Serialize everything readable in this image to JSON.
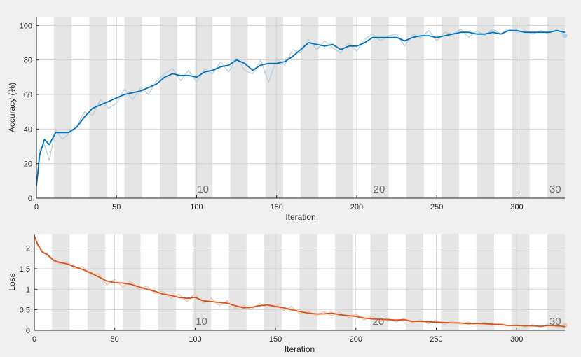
{
  "chart_data": [
    {
      "type": "line",
      "panel": "accuracy",
      "xlabel": "Iteration",
      "ylabel": "Accuracy (%)",
      "xlim": [
        0,
        330
      ],
      "ylim": [
        0,
        105
      ],
      "xticks": [
        0,
        50,
        100,
        150,
        200,
        250,
        300
      ],
      "yticks": [
        0,
        20,
        40,
        60,
        80,
        100
      ],
      "grid": true,
      "epoch_bands": {
        "iterations_per_epoch": 11,
        "epochs": 30
      },
      "epoch_labels": [
        {
          "text": "10",
          "x": 104
        },
        {
          "text": "20",
          "x": 214
        },
        {
          "text": "30",
          "x": 324
        }
      ],
      "colors": {
        "smoothed": "#0072bd",
        "raw": "#b4cfe2",
        "band": "#e5e5e5"
      },
      "series": [
        {
          "role": "smoothed",
          "x": [
            0,
            2,
            5,
            8,
            12,
            16,
            20,
            25,
            30,
            35,
            40,
            45,
            50,
            55,
            60,
            65,
            70,
            75,
            80,
            85,
            90,
            95,
            100,
            105,
            110,
            115,
            120,
            125,
            130,
            135,
            140,
            145,
            150,
            155,
            160,
            165,
            170,
            175,
            180,
            185,
            190,
            195,
            200,
            205,
            210,
            215,
            220,
            225,
            230,
            235,
            240,
            245,
            250,
            255,
            260,
            265,
            270,
            275,
            280,
            285,
            290,
            295,
            300,
            305,
            310,
            315,
            320,
            325,
            330
          ],
          "y": [
            7,
            25,
            34,
            31,
            38,
            38,
            38,
            41,
            47,
            52,
            54,
            56,
            58,
            60,
            61,
            62,
            64,
            66,
            70,
            72,
            71,
            71,
            70,
            73,
            74,
            76,
            77,
            80,
            78,
            74,
            77,
            78,
            78,
            79,
            82,
            86,
            90,
            89,
            88,
            89,
            86,
            88,
            88,
            90,
            93,
            93,
            93,
            93,
            91,
            93,
            94,
            94,
            93,
            94,
            95,
            96,
            96,
            95,
            95,
            96,
            95,
            97,
            97,
            96,
            96,
            96,
            96,
            97,
            96
          ]
        },
        {
          "role": "raw",
          "x": [
            0,
            2,
            5,
            8,
            12,
            16,
            20,
            25,
            30,
            35,
            40,
            45,
            50,
            55,
            60,
            65,
            70,
            75,
            80,
            85,
            90,
            95,
            100,
            105,
            110,
            115,
            120,
            125,
            130,
            135,
            140,
            145,
            150,
            155,
            160,
            165,
            170,
            175,
            180,
            185,
            190,
            195,
            200,
            205,
            210,
            215,
            220,
            225,
            230,
            235,
            240,
            245,
            250,
            255,
            260,
            265,
            270,
            275,
            280,
            285,
            290,
            295,
            300,
            305,
            310,
            315,
            320,
            325,
            330
          ],
          "y": [
            7,
            28,
            31,
            22,
            40,
            34,
            37,
            41,
            50,
            48,
            57,
            52,
            55,
            63,
            57,
            64,
            60,
            68,
            72,
            75,
            68,
            74,
            67,
            75,
            72,
            79,
            73,
            81,
            74,
            72,
            80,
            67,
            81,
            77,
            86,
            84,
            92,
            86,
            91,
            87,
            84,
            90,
            85,
            92,
            95,
            91,
            94,
            95,
            88,
            95,
            93,
            97,
            91,
            96,
            95,
            98,
            93,
            97,
            94,
            98,
            95,
            98,
            96,
            97,
            95,
            97,
            95,
            98,
            94
          ]
        }
      ]
    },
    {
      "type": "line",
      "panel": "loss",
      "xlabel": "Iteration",
      "ylabel": "Loss",
      "xlim": [
        0,
        330
      ],
      "ylim": [
        0,
        2.35
      ],
      "xticks": [
        0,
        50,
        100,
        150,
        200,
        250,
        300
      ],
      "yticks": [
        0,
        0.5,
        1,
        1.5,
        2
      ],
      "ytick_labels": [
        "0",
        "0.5",
        "1",
        "1.5",
        "2"
      ],
      "grid": true,
      "epoch_bands": {
        "iterations_per_epoch": 11,
        "epochs": 30
      },
      "epoch_labels": [
        {
          "text": "10",
          "x": 104
        },
        {
          "text": "20",
          "x": 214
        },
        {
          "text": "30",
          "x": 324
        }
      ],
      "colors": {
        "smoothed": "#d95319",
        "raw": "#efc4ad",
        "band": "#e5e5e5"
      },
      "series": [
        {
          "role": "smoothed",
          "x": [
            0,
            2,
            5,
            8,
            12,
            16,
            20,
            25,
            30,
            35,
            40,
            45,
            50,
            55,
            60,
            65,
            70,
            75,
            80,
            85,
            90,
            95,
            100,
            105,
            110,
            115,
            120,
            125,
            130,
            135,
            140,
            145,
            150,
            155,
            160,
            165,
            170,
            175,
            180,
            185,
            190,
            195,
            200,
            205,
            210,
            215,
            220,
            225,
            230,
            235,
            240,
            245,
            250,
            255,
            260,
            265,
            270,
            275,
            280,
            285,
            290,
            295,
            300,
            305,
            310,
            315,
            320,
            325,
            330
          ],
          "y": [
            2.3,
            2.1,
            1.9,
            1.85,
            1.7,
            1.65,
            1.62,
            1.55,
            1.48,
            1.4,
            1.3,
            1.2,
            1.16,
            1.15,
            1.12,
            1.06,
            1.0,
            0.95,
            0.88,
            0.85,
            0.8,
            0.78,
            0.8,
            0.72,
            0.7,
            0.68,
            0.66,
            0.6,
            0.55,
            0.56,
            0.6,
            0.62,
            0.58,
            0.55,
            0.5,
            0.46,
            0.42,
            0.4,
            0.4,
            0.42,
            0.38,
            0.36,
            0.34,
            0.3,
            0.28,
            0.27,
            0.26,
            0.25,
            0.26,
            0.22,
            0.22,
            0.21,
            0.2,
            0.19,
            0.18,
            0.18,
            0.16,
            0.17,
            0.16,
            0.15,
            0.14,
            0.12,
            0.12,
            0.11,
            0.11,
            0.1,
            0.12,
            0.11,
            0.09
          ]
        },
        {
          "role": "raw",
          "x": [
            0,
            2,
            5,
            8,
            12,
            16,
            20,
            25,
            30,
            35,
            40,
            45,
            50,
            55,
            60,
            65,
            70,
            75,
            80,
            85,
            90,
            95,
            100,
            105,
            110,
            115,
            120,
            125,
            130,
            135,
            140,
            145,
            150,
            155,
            160,
            165,
            170,
            175,
            180,
            185,
            190,
            195,
            200,
            205,
            210,
            215,
            220,
            225,
            230,
            235,
            240,
            245,
            250,
            255,
            260,
            265,
            270,
            275,
            280,
            285,
            290,
            295,
            300,
            305,
            310,
            315,
            320,
            325,
            330
          ],
          "y": [
            2.3,
            2.05,
            1.95,
            1.8,
            1.75,
            1.6,
            1.68,
            1.5,
            1.55,
            1.35,
            1.38,
            1.1,
            1.25,
            1.05,
            1.2,
            0.98,
            1.08,
            0.9,
            0.95,
            0.78,
            0.88,
            0.7,
            0.9,
            0.65,
            0.78,
            0.6,
            0.72,
            0.52,
            0.6,
            0.5,
            0.66,
            0.55,
            0.65,
            0.48,
            0.58,
            0.4,
            0.48,
            0.35,
            0.45,
            0.36,
            0.44,
            0.3,
            0.4,
            0.25,
            0.34,
            0.22,
            0.3,
            0.2,
            0.3,
            0.18,
            0.26,
            0.16,
            0.25,
            0.14,
            0.22,
            0.15,
            0.2,
            0.12,
            0.2,
            0.11,
            0.17,
            0.1,
            0.15,
            0.08,
            0.14,
            0.07,
            0.16,
            0.08,
            0.12
          ]
        }
      ]
    }
  ]
}
